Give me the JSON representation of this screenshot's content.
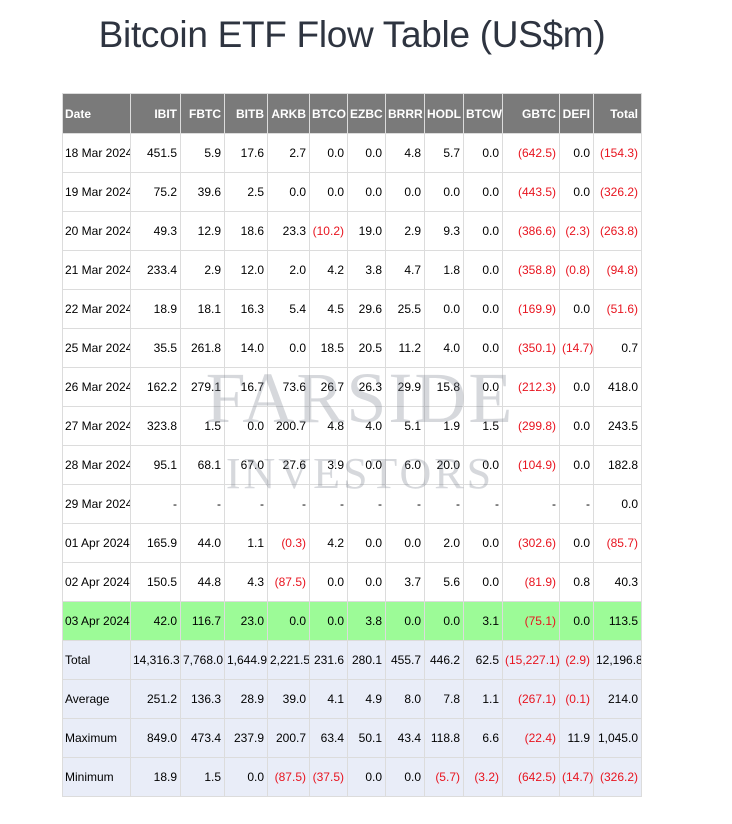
{
  "title": "Bitcoin ETF Flow Table (US$m)",
  "watermark": {
    "line1": "FARSIDE",
    "line2": "INVESTORS"
  },
  "colors": {
    "header_bg": "#7a7a7a",
    "highlight_row": "#9cfb97",
    "summary_bg": "#e9edf8",
    "negative_text": "#e8141f"
  },
  "columns": [
    "Date",
    "IBIT",
    "FBTC",
    "BITB",
    "ARKB",
    "BTCO",
    "EZBC",
    "BRRR",
    "HODL",
    "BTCW",
    "GBTC",
    "DEFI",
    "Total"
  ],
  "rows": [
    [
      "18 Mar 2024",
      "451.5",
      "5.9",
      "17.6",
      "2.7",
      "0.0",
      "0.0",
      "4.8",
      "5.7",
      "0.0",
      "(642.5)",
      "0.0",
      "(154.3)"
    ],
    [
      "19 Mar 2024",
      "75.2",
      "39.6",
      "2.5",
      "0.0",
      "0.0",
      "0.0",
      "0.0",
      "0.0",
      "0.0",
      "(443.5)",
      "0.0",
      "(326.2)"
    ],
    [
      "20 Mar 2024",
      "49.3",
      "12.9",
      "18.6",
      "23.3",
      "(10.2)",
      "19.0",
      "2.9",
      "9.3",
      "0.0",
      "(386.6)",
      "(2.3)",
      "(263.8)"
    ],
    [
      "21 Mar 2024",
      "233.4",
      "2.9",
      "12.0",
      "2.0",
      "4.2",
      "3.8",
      "4.7",
      "1.8",
      "0.0",
      "(358.8)",
      "(0.8)",
      "(94.8)"
    ],
    [
      "22 Mar 2024",
      "18.9",
      "18.1",
      "16.3",
      "5.4",
      "4.5",
      "29.6",
      "25.5",
      "0.0",
      "0.0",
      "(169.9)",
      "0.0",
      "(51.6)"
    ],
    [
      "25 Mar 2024",
      "35.5",
      "261.8",
      "14.0",
      "0.0",
      "18.5",
      "20.5",
      "11.2",
      "4.0",
      "0.0",
      "(350.1)",
      "(14.7)",
      "0.7"
    ],
    [
      "26 Mar 2024",
      "162.2",
      "279.1",
      "16.7",
      "73.6",
      "26.7",
      "26.3",
      "29.9",
      "15.8",
      "0.0",
      "(212.3)",
      "0.0",
      "418.0"
    ],
    [
      "27 Mar 2024",
      "323.8",
      "1.5",
      "0.0",
      "200.7",
      "4.8",
      "4.0",
      "5.1",
      "1.9",
      "1.5",
      "(299.8)",
      "0.0",
      "243.5"
    ],
    [
      "28 Mar 2024",
      "95.1",
      "68.1",
      "67.0",
      "27.6",
      "3.9",
      "0.0",
      "6.0",
      "20.0",
      "0.0",
      "(104.9)",
      "0.0",
      "182.8"
    ],
    [
      "29 Mar 2024",
      "-",
      "-",
      "-",
      "-",
      "-",
      "-",
      "-",
      "-",
      "-",
      "-",
      "-",
      "0.0"
    ],
    [
      "01 Apr 2024",
      "165.9",
      "44.0",
      "1.1",
      "(0.3)",
      "4.2",
      "0.0",
      "0.0",
      "2.0",
      "0.0",
      "(302.6)",
      "0.0",
      "(85.7)"
    ],
    [
      "02 Apr 2024",
      "150.5",
      "44.8",
      "4.3",
      "(87.5)",
      "0.0",
      "0.0",
      "3.7",
      "5.6",
      "0.0",
      "(81.9)",
      "0.8",
      "40.3"
    ],
    [
      "03 Apr 2024",
      "42.0",
      "116.7",
      "23.0",
      "0.0",
      "0.0",
      "3.8",
      "0.0",
      "0.0",
      "3.1",
      "(75.1)",
      "0.0",
      "113.5"
    ]
  ],
  "highlight_row_index": 12,
  "summary": [
    [
      "Total",
      "14,316.3",
      "7,768.0",
      "1,644.9",
      "2,221.5",
      "231.6",
      "280.1",
      "455.7",
      "446.2",
      "62.5",
      "(15,227.1)",
      "(2.9)",
      "12,196.8"
    ],
    [
      "Average",
      "251.2",
      "136.3",
      "28.9",
      "39.0",
      "4.1",
      "4.9",
      "8.0",
      "7.8",
      "1.1",
      "(267.1)",
      "(0.1)",
      "214.0"
    ],
    [
      "Maximum",
      "849.0",
      "473.4",
      "237.9",
      "200.7",
      "63.4",
      "50.1",
      "43.4",
      "118.8",
      "6.6",
      "(22.4)",
      "11.9",
      "1,045.0"
    ],
    [
      "Minimum",
      "18.9",
      "1.5",
      "0.0",
      "(87.5)",
      "(37.5)",
      "0.0",
      "0.0",
      "(5.7)",
      "(3.2)",
      "(642.5)",
      "(14.7)",
      "(326.2)"
    ]
  ]
}
